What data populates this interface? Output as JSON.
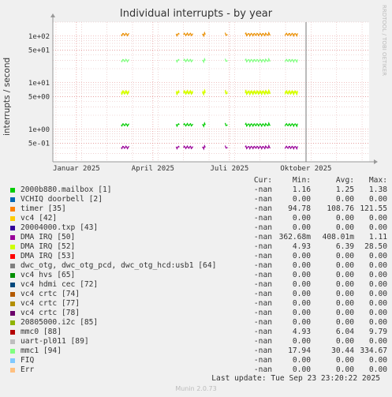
{
  "chart_data": {
    "type": "line",
    "title": "Individual interrupts - by year",
    "ylabel": "interrupts / second",
    "yscale": "log",
    "ylim": [
      0.2,
      200
    ],
    "yticks": [
      "5e-01",
      "1e+00",
      "5e+00",
      "1e+01",
      "5e+01",
      "1e+02"
    ],
    "xticks": [
      "Januar 2025",
      "April 2025",
      "Juli 2025",
      "Oktober 2025"
    ],
    "grid": true,
    "side_label": "RRDTOOL / TOBI OETIKER",
    "series": [
      {
        "name": "timer [35]",
        "color": "#EA8F00",
        "level": 109
      },
      {
        "name": "mmc1 [94]",
        "color": "#80FF80",
        "level": 30
      },
      {
        "name": "mmc0 [88]",
        "color": "#CCFF00",
        "level": 6
      },
      {
        "name": "DMA IRQ [52]",
        "color": "#DDFF00",
        "level": 6.4
      },
      {
        "name": "2000b880.mailbox [1]",
        "color": "#00CC00",
        "level": 1.25
      },
      {
        "name": "DMA IRQ [50]",
        "color": "#990099",
        "level": 0.41
      }
    ]
  },
  "legend": {
    "headers": {
      "cur": "Cur:",
      "min": "Min:",
      "avg": "Avg:",
      "max": "Max:"
    },
    "rows": [
      {
        "name": "2000b880.mailbox [1]",
        "color": "#00CC00",
        "cur": "-nan",
        "min": "1.16",
        "avg": "1.25",
        "max": "1.38"
      },
      {
        "name": "VCHIQ doorbell [2]",
        "color": "#0066B3",
        "cur": "-nan",
        "min": "0.00",
        "avg": "0.00",
        "max": "0.00"
      },
      {
        "name": "timer [35]",
        "color": "#FF8000",
        "cur": "-nan",
        "min": "94.78",
        "avg": "108.76",
        "max": "121.55"
      },
      {
        "name": "vc4 [42]",
        "color": "#FFCC00",
        "cur": "-nan",
        "min": "0.00",
        "avg": "0.00",
        "max": "0.00"
      },
      {
        "name": "20004000.txp [43]",
        "color": "#330099",
        "cur": "-nan",
        "min": "0.00",
        "avg": "0.00",
        "max": "0.00"
      },
      {
        "name": "DMA IRQ [50]",
        "color": "#990099",
        "cur": "-nan",
        "min": "362.68m",
        "avg": "408.01m",
        "max": "1.11"
      },
      {
        "name": "DMA IRQ [52]",
        "color": "#CCFF00",
        "cur": "-nan",
        "min": "4.93",
        "avg": "6.39",
        "max": "28.50"
      },
      {
        "name": "DMA IRQ [53]",
        "color": "#FF0000",
        "cur": "-nan",
        "min": "0.00",
        "avg": "0.00",
        "max": "0.00"
      },
      {
        "name": "dwc_otg, dwc_otg_pcd, dwc_otg_hcd:usb1 [64]",
        "color": "#808080",
        "cur": "-nan",
        "min": "0.00",
        "avg": "0.00",
        "max": "0.00"
      },
      {
        "name": "vc4 hvs [65]",
        "color": "#008F00",
        "cur": "-nan",
        "min": "0.00",
        "avg": "0.00",
        "max": "0.00"
      },
      {
        "name": "vc4 hdmi cec [72]",
        "color": "#00487D",
        "cur": "-nan",
        "min": "0.00",
        "avg": "0.00",
        "max": "0.00"
      },
      {
        "name": "vc4 crtc [74]",
        "color": "#B35A00",
        "cur": "-nan",
        "min": "0.00",
        "avg": "0.00",
        "max": "0.00"
      },
      {
        "name": "vc4 crtc [77]",
        "color": "#B38F00",
        "cur": "-nan",
        "min": "0.00",
        "avg": "0.00",
        "max": "0.00"
      },
      {
        "name": "vc4 crtc [78]",
        "color": "#6B006B",
        "cur": "-nan",
        "min": "0.00",
        "avg": "0.00",
        "max": "0.00"
      },
      {
        "name": "20805000.i2c [85]",
        "color": "#8FB300",
        "cur": "-nan",
        "min": "0.00",
        "avg": "0.00",
        "max": "0.00"
      },
      {
        "name": "mmc0 [88]",
        "color": "#B30000",
        "cur": "-nan",
        "min": "4.93",
        "avg": "6.04",
        "max": "9.79"
      },
      {
        "name": "uart-pl011 [89]",
        "color": "#BEBEBE",
        "cur": "-nan",
        "min": "0.00",
        "avg": "0.00",
        "max": "0.00"
      },
      {
        "name": "mmc1 [94]",
        "color": "#80FF80",
        "cur": "-nan",
        "min": "17.94",
        "avg": "30.44",
        "max": "334.67"
      },
      {
        "name": "FIQ",
        "color": "#80C9FF",
        "cur": "-nan",
        "min": "0.00",
        "avg": "0.00",
        "max": "0.00"
      },
      {
        "name": "Err",
        "color": "#FFC080",
        "cur": "-nan",
        "min": "0.00",
        "avg": "0.00",
        "max": "0.00"
      }
    ]
  },
  "last_update": "Last update: Tue Sep 23 23:20:22 2025",
  "footer": "Munin 2.0.73"
}
